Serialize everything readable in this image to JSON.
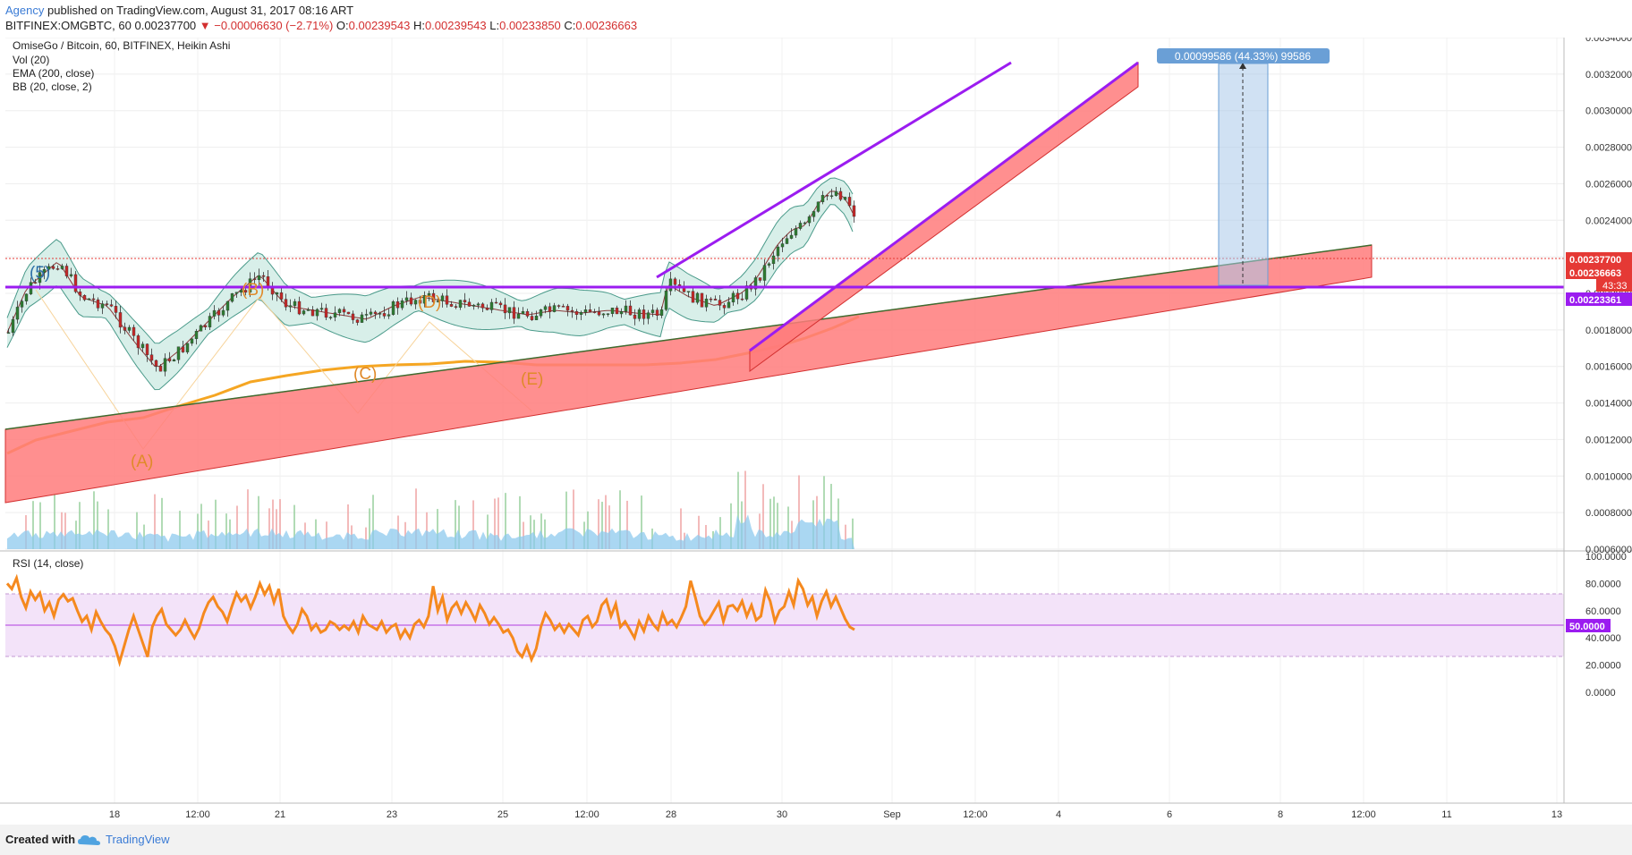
{
  "header": {
    "publisher": "Agency",
    "published_text": "published on TradingView.com, August 31, 2017 08:16 ART",
    "symbol": "BITFINEX:OMGBTC, 60",
    "last": "0.00237700",
    "change": "▼ −0.00006630 (−2.71%)",
    "o_label": "O:",
    "o": "0.00239543",
    "h_label": "H:",
    "h": "0.00239543",
    "l_label": "L:",
    "l": "0.00233850",
    "c_label": "C:",
    "c": "0.00236663"
  },
  "legend": {
    "title": "OmiseGo / Bitcoin, 60, BITFINEX, Heikin Ashi",
    "vol": "Vol (20)",
    "ema": "EMA (200, close)",
    "bb": "BB (20, close, 2)",
    "rsi": "RSI (14, close)"
  },
  "footer": {
    "created": "Created with",
    "brand": "TradingView"
  },
  "colors": {
    "candle_up": "#2e7d32",
    "candle_down": "#c62828",
    "ema": "#f5a623",
    "purple": "#9b1cf0",
    "band_fill": "#ff7b7b",
    "bb_fill": "#d8efe9",
    "rsi_line": "#f5891e",
    "rsi_band": "#f3e3f9",
    "price_badge": "#e53935",
    "level_badge": "#9b1cf0"
  },
  "chart_data": {
    "type": "candlestick",
    "price_axis": {
      "ticks": [
        "0.00340000",
        "0.00320000",
        "0.00300000",
        "0.00280000",
        "0.00260000",
        "0.00240000",
        "0.00220000",
        "0.00200000",
        "0.00180000",
        "0.00160000",
        "0.00140000",
        "0.00120000",
        "0.00100000",
        "0.00080000",
        "0.00060000"
      ],
      "range": [
        0.0006,
        0.0034
      ]
    },
    "badges": {
      "last": "0.00237700",
      "close": "0.00236663",
      "countdown": "43:33",
      "level": "0.00223361"
    },
    "rsi_axis": {
      "ticks": [
        "100.0000",
        "80.0000",
        "60.0000",
        "40.0000",
        "20.0000",
        "0.0000"
      ],
      "badge": "50.0000",
      "band": [
        25,
        75
      ],
      "range": [
        0,
        100
      ]
    },
    "x_ticks": [
      "18",
      "12:00",
      "21",
      "23",
      "25",
      "12:00",
      "28",
      "30",
      "Sep",
      "12:00",
      "4",
      "6",
      "8",
      "12:00",
      "11",
      "13"
    ],
    "wave_labels": [
      "(5)",
      "(A)",
      "(B)",
      "(C)",
      "(D)",
      "(E)"
    ],
    "measure_label": "0.00099586 (44.33%) 99586",
    "support_level": 0.00223361,
    "rsi_values": [
      80,
      76,
      84,
      70,
      62,
      74,
      68,
      73,
      60,
      66,
      56,
      68,
      72,
      67,
      69,
      60,
      52,
      56,
      46,
      59,
      52,
      46,
      42,
      34,
      22,
      34,
      46,
      56,
      46,
      36,
      26,
      48,
      56,
      61,
      50,
      46,
      42,
      46,
      53,
      46,
      40,
      47,
      58,
      66,
      70,
      63,
      59,
      52,
      63,
      73,
      67,
      71,
      62,
      70,
      80,
      72,
      78,
      66,
      76,
      56,
      49,
      44,
      50,
      61,
      56,
      46,
      50,
      44,
      46,
      52,
      50,
      46,
      49,
      46,
      52,
      44,
      56,
      50,
      48,
      46,
      52,
      44,
      48,
      50,
      40,
      46,
      40,
      50,
      53,
      48,
      56,
      78,
      60,
      70,
      53,
      62,
      66,
      58,
      66,
      60,
      53,
      64,
      58,
      50,
      55,
      50,
      44,
      46,
      40,
      30,
      26,
      34,
      24,
      32,
      48,
      58,
      53,
      46,
      50,
      44,
      50,
      46,
      42,
      53,
      56,
      48,
      52,
      64,
      68,
      56,
      65,
      48,
      52,
      46,
      40,
      52,
      45,
      56,
      50,
      46,
      58,
      50,
      53,
      48,
      55,
      63,
      82,
      70,
      56,
      50,
      54,
      60,
      66,
      52,
      63,
      64,
      60,
      67,
      56,
      64,
      53,
      56,
      75,
      67,
      52,
      60,
      63,
      74,
      64,
      82,
      76,
      64,
      70,
      56,
      67,
      74,
      63,
      70,
      62,
      54,
      48,
      46
    ]
  }
}
